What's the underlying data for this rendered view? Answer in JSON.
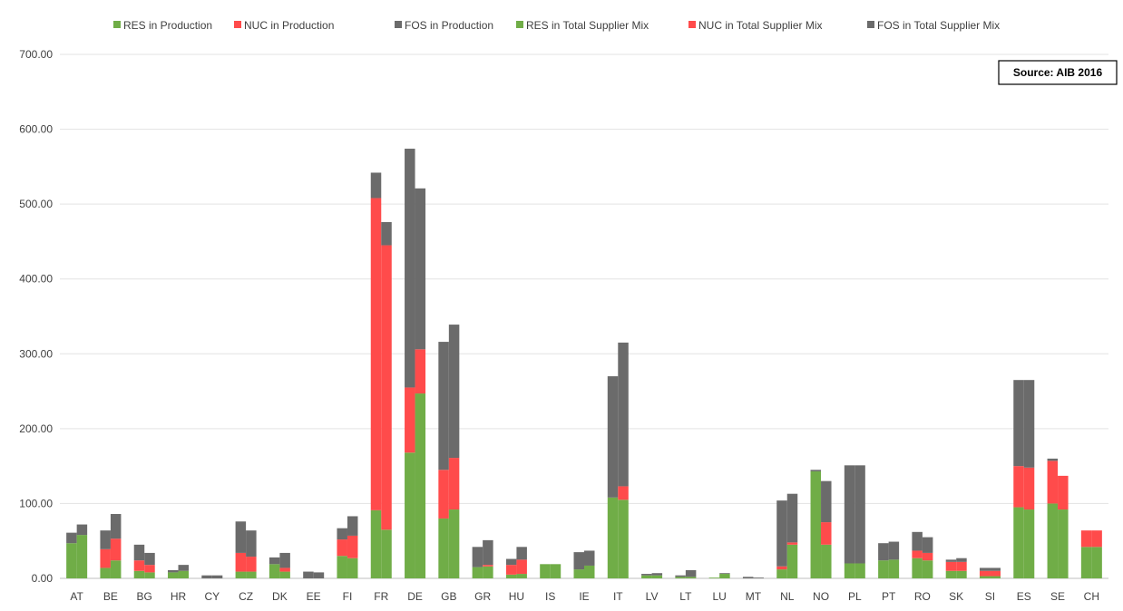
{
  "chart_data": {
    "type": "bar",
    "stacked": true,
    "grouped": true,
    "title": "",
    "xlabel": "",
    "ylabel": "",
    "ylim": [
      0,
      700
    ],
    "yticks": [
      "0.00",
      "100.00",
      "200.00",
      "300.00",
      "400.00",
      "500.00",
      "600.00",
      "700.00"
    ],
    "grid": "horizontal",
    "legend_position": "top",
    "source_note": "Source: AIB 2016",
    "categories": [
      "AT",
      "BE",
      "BG",
      "HR",
      "CY",
      "CZ",
      "DK",
      "EE",
      "FI",
      "FR",
      "DE",
      "GB",
      "GR",
      "HU",
      "IS",
      "IE",
      "IT",
      "LV",
      "LT",
      "LU",
      "MT",
      "NL",
      "NO",
      "PL",
      "PT",
      "RO",
      "SK",
      "SI",
      "ES",
      "SE",
      "CH"
    ],
    "colors": {
      "RES": "#70ad47",
      "NUC": "#ff4b4b",
      "FOS": "#6b6b6b"
    },
    "series": [
      {
        "name": "RES in Production",
        "group": "production",
        "kind": "RES",
        "values": [
          47,
          14,
          10,
          8,
          0,
          9,
          19,
          0,
          30,
          91,
          168,
          80,
          15,
          5,
          19,
          12,
          108,
          4,
          2,
          1,
          0,
          12,
          143,
          20,
          24,
          27,
          10,
          3,
          95,
          100,
          42
        ]
      },
      {
        "name": "NUC in Production",
        "group": "production",
        "kind": "NUC",
        "values": [
          0,
          25,
          14,
          0,
          0,
          25,
          0,
          0,
          22,
          417,
          87,
          65,
          0,
          13,
          0,
          0,
          0,
          0,
          0,
          0,
          0,
          4,
          0,
          0,
          0,
          10,
          12,
          7,
          55,
          57,
          22
        ]
      },
      {
        "name": "FOS in Production",
        "group": "production",
        "kind": "FOS",
        "values": [
          14,
          25,
          21,
          3,
          4,
          42,
          9,
          9,
          15,
          34,
          319,
          171,
          27,
          8,
          0,
          23,
          162,
          2,
          2,
          0,
          2,
          88,
          2,
          131,
          23,
          25,
          3,
          4,
          115,
          3,
          0
        ]
      },
      {
        "name": "RES in Total Supplier Mix",
        "group": "supplier",
        "kind": "RES",
        "values": [
          58,
          24,
          8,
          10,
          0,
          9,
          9,
          0,
          27,
          65,
          247,
          92,
          16,
          6,
          19,
          17,
          105,
          4,
          2,
          6,
          0,
          45,
          45,
          20,
          25,
          24,
          10,
          3,
          92,
          92,
          42
        ]
      },
      {
        "name": "NUC in Total Supplier Mix",
        "group": "supplier",
        "kind": "NUC",
        "values": [
          0,
          29,
          10,
          0,
          0,
          20,
          5,
          0,
          30,
          380,
          59,
          69,
          2,
          19,
          0,
          0,
          18,
          0,
          0,
          0,
          0,
          3,
          30,
          0,
          0,
          10,
          12,
          7,
          56,
          45,
          22
        ]
      },
      {
        "name": "FOS in Total Supplier Mix",
        "group": "supplier",
        "kind": "FOS",
        "values": [
          14,
          33,
          16,
          8,
          4,
          35,
          20,
          8,
          26,
          31,
          215,
          178,
          33,
          17,
          0,
          20,
          192,
          3,
          9,
          1,
          1,
          65,
          55,
          131,
          24,
          21,
          5,
          4,
          117,
          0,
          0
        ]
      }
    ]
  }
}
